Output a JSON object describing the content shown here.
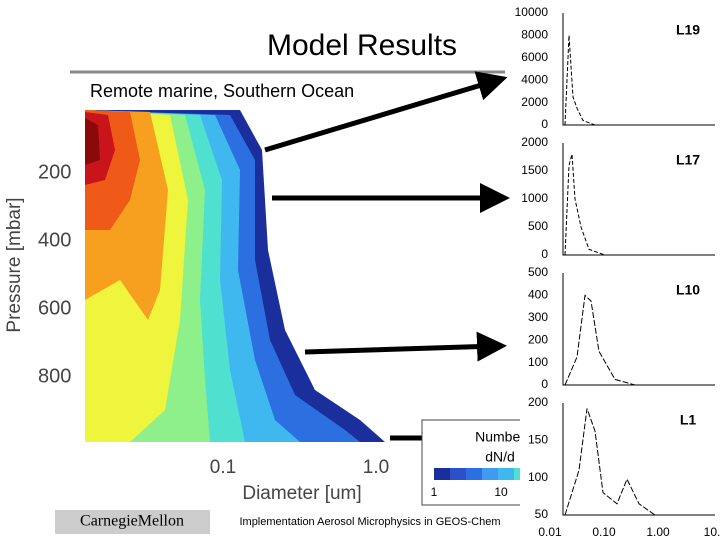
{
  "slide": {
    "title": "Model Results",
    "subtitle": "Remote marine, Southern Ocean",
    "contour": {
      "y_label": "Pressure [mbar]",
      "x_label": "Diameter [um]",
      "y_ticks": [
        "200",
        "400",
        "600",
        "800"
      ],
      "x_ticks": [
        "0.1",
        "1.0"
      ]
    },
    "legend": {
      "title_lines": [
        "Number",
        "dN/d"
      ],
      "ticks": [
        "1",
        "10"
      ]
    },
    "panels": [
      {
        "label": "L19",
        "y_ticks": [
          "10000",
          "8000",
          "6000",
          "4000",
          "2000",
          "0"
        ]
      },
      {
        "label": "L17",
        "y_ticks": [
          "2000",
          "1500",
          "1000",
          "500",
          "0"
        ]
      },
      {
        "label": "L10",
        "y_ticks": [
          "500",
          "400",
          "300",
          "200",
          "100",
          "0"
        ]
      },
      {
        "label": "L1",
        "y_ticks": [
          "200",
          "150",
          "100",
          "50"
        ],
        "x_ticks": [
          "0.01",
          "0.10",
          "1.00",
          "10."
        ]
      }
    ],
    "footer": {
      "logo": "CarnegieMellon",
      "text": "Implementation Aerosol Microphysics in GEOS-Chem"
    }
  }
}
